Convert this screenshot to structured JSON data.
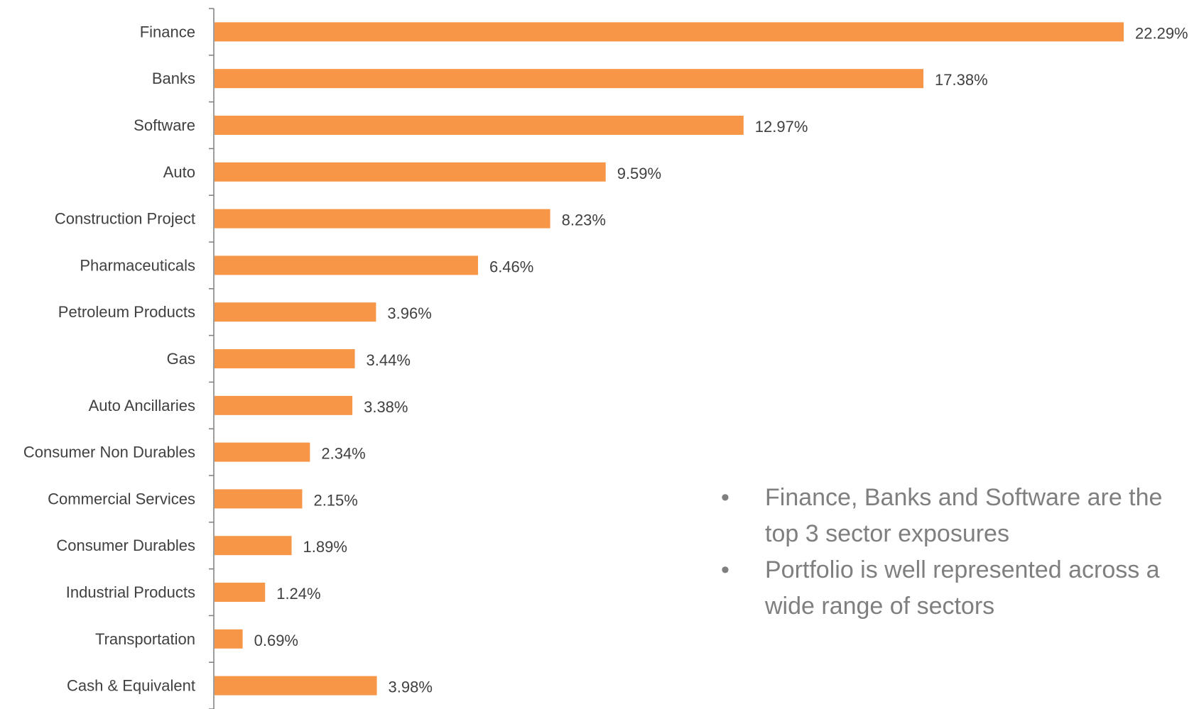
{
  "chart_data": {
    "type": "bar",
    "orientation": "horizontal",
    "categories": [
      "Finance",
      "Banks",
      "Software",
      "Auto",
      "Construction Project",
      "Pharmaceuticals",
      "Petroleum Products",
      "Gas",
      "Auto Ancillaries",
      "Consumer Non Durables",
      "Commercial Services",
      "Consumer Durables",
      "Industrial Products",
      "Transportation",
      "Cash & Equivalent"
    ],
    "values": [
      22.29,
      17.38,
      12.97,
      9.59,
      8.23,
      6.46,
      3.96,
      3.44,
      3.38,
      2.34,
      2.15,
      1.89,
      1.24,
      0.69,
      3.98
    ],
    "data_labels": [
      "22.29%",
      "17.38%",
      "12.97%",
      "9.59%",
      "8.23%",
      "6.46%",
      "3.96%",
      "3.44%",
      "3.38%",
      "2.34%",
      "2.15%",
      "1.89%",
      "1.24%",
      "0.69%",
      "3.98%"
    ],
    "unit": "%",
    "xlim": [
      0,
      22.29
    ],
    "grid": false,
    "bar_color": "#F79646"
  },
  "notes": {
    "bullet_glyph": "•",
    "items": [
      "Finance, Banks and Software are the top 3 sector exposures",
      "Portfolio is well represented across a wide range of sectors"
    ]
  }
}
